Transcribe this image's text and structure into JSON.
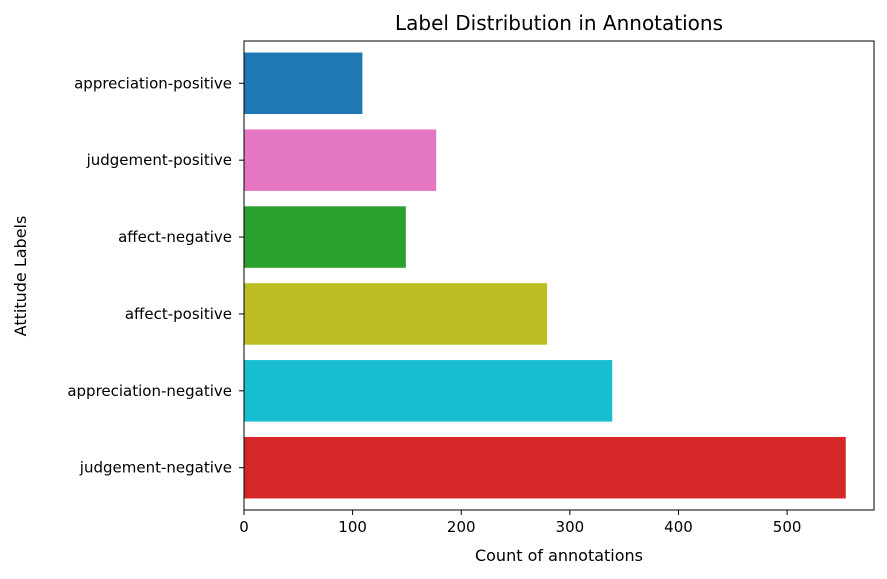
{
  "chart_data": {
    "type": "bar",
    "orientation": "horizontal",
    "title": "Label Distribution in Annotations",
    "xlabel": "Count of annotations",
    "ylabel": "Attitude Labels",
    "categories": [
      "judgement-negative",
      "appreciation-negative",
      "affect-positive",
      "affect-negative",
      "judgement-positive",
      "appreciation-positive"
    ],
    "values": [
      554,
      339,
      279,
      149,
      177,
      109
    ],
    "colors": [
      "#d62728",
      "#17becf",
      "#bcbd22",
      "#2ca02c",
      "#e377c2",
      "#1f77b4"
    ],
    "xlim": [
      0,
      580
    ],
    "xticks": [
      0,
      100,
      200,
      300,
      400,
      500
    ],
    "grid": false,
    "legend": "none"
  }
}
